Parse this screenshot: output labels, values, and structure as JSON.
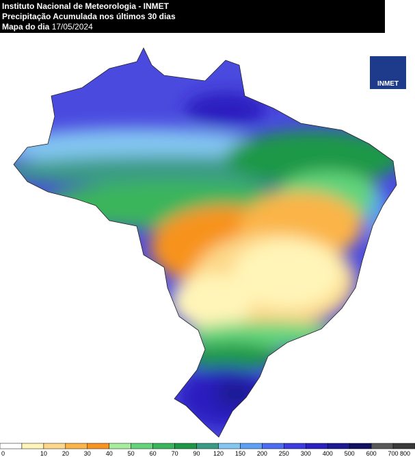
{
  "header": {
    "line1": "Instituto Nacional de Meteorologia - INMET",
    "line2": "Precipitação Acumulada nos últimos 30 dias",
    "line3": "Mapa do dia",
    "date": "17/05/2024"
  },
  "logo": "INMET",
  "legend": {
    "labels": [
      0,
      10,
      20,
      30,
      40,
      50,
      60,
      70,
      90,
      120,
      150,
      200,
      250,
      300,
      400,
      500,
      600,
      700,
      800
    ],
    "colors": [
      "#ffffff",
      "#fff5b8",
      "#fdd88a",
      "#fbb447",
      "#f7931e",
      "#a6ee9e",
      "#62d47c",
      "#3bb55c",
      "#1e9846",
      "#3a9b84",
      "#83c6f2",
      "#5d9ff2",
      "#4b6cf0",
      "#3b3bdf",
      "#2a1fbf",
      "#1b1a92",
      "#121063",
      "#585858",
      "#3a3a3a"
    ]
  }
}
